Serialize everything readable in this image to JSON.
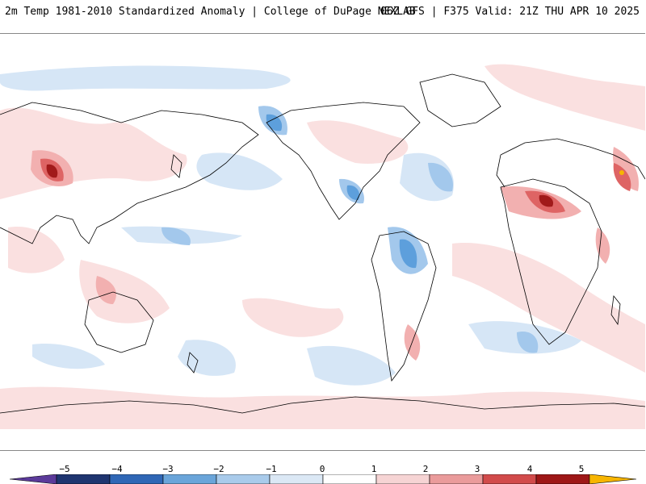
{
  "header": {
    "left_title": "2m Temp 1981-2010 Standardized Anomaly | College of DuPage NEXLAB",
    "right_title": "06Z GFS | F375 Valid: 21Z THU APR 10 2025"
  },
  "colorbar": {
    "ticks": [
      "−5",
      "−4",
      "−3",
      "−2",
      "−1",
      "0",
      "1",
      "2",
      "3",
      "4",
      "5"
    ],
    "colors": [
      "#5b3a9a",
      "#1f3570",
      "#2f67b6",
      "#6aa5da",
      "#a9cbeb",
      "#dbe8f5",
      "#ffffff",
      "#f6d4d4",
      "#ea9b9b",
      "#d24b4b",
      "#9e1717",
      "#f7b500"
    ]
  },
  "map": {
    "colors": {
      "pale_blue": "#d6e6f6",
      "light_blue": "#a3c8ec",
      "mid_blue": "#5d9fdc",
      "dark_blue": "#2a5ea8",
      "pale_red": "#fae0e0",
      "light_red": "#f2b0b0",
      "mid_red": "#de6464",
      "dark_red": "#a11a1a",
      "outline": "#000000"
    }
  }
}
